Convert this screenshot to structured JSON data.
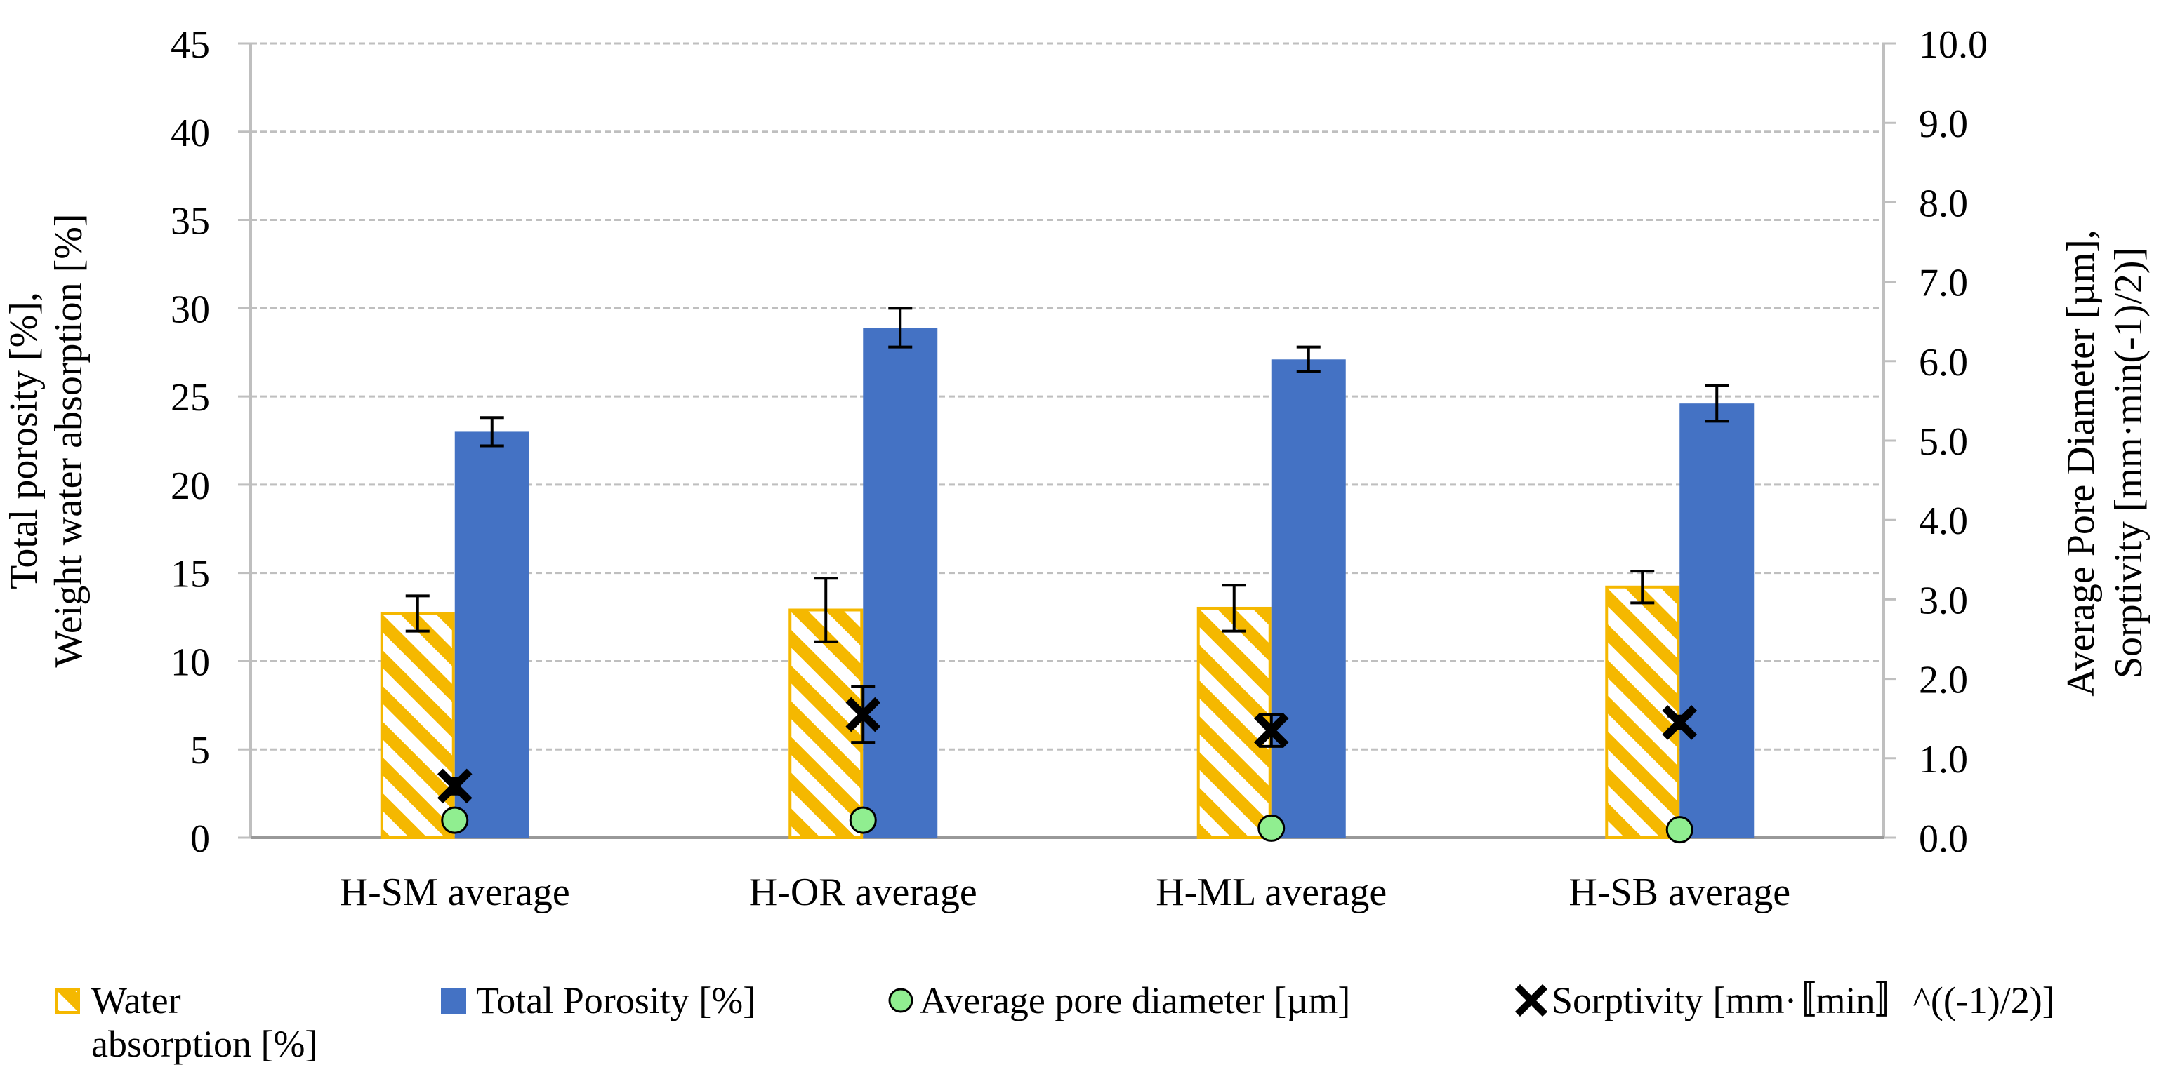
{
  "chart_data": {
    "type": "bar",
    "categories": [
      "H-SM average",
      "H-OR average",
      "H-ML average",
      "H-SB average"
    ],
    "left_axis": {
      "title_lines": [
        "Total porosity [%],",
        "Weight water absorption [%]"
      ],
      "range": [
        0,
        45
      ],
      "ticks": [
        0,
        5,
        10,
        15,
        20,
        25,
        30,
        35,
        40,
        45
      ],
      "tick_labels": [
        "0",
        "5",
        "10",
        "15",
        "20",
        "25",
        "30",
        "35",
        "40",
        "45"
      ]
    },
    "right_axis": {
      "title_lines": [
        "Average Pore Diameter [µm],",
        "Sorptivity [mm·min(-1)/2)]"
      ],
      "range": [
        0,
        10
      ],
      "ticks": [
        0,
        1,
        2,
        3,
        4,
        5,
        6,
        7,
        8,
        9,
        10
      ],
      "tick_labels": [
        "0.0",
        "1.0",
        "2.0",
        "3.0",
        "4.0",
        "5.0",
        "6.0",
        "7.0",
        "8.0",
        "9.0",
        "10.0"
      ]
    },
    "series": [
      {
        "name": "Water absorption [%]",
        "kind": "bar",
        "axis": "left",
        "pattern": "hatched",
        "color": "#F5B800",
        "values": [
          12.7,
          12.9,
          13.0,
          14.2
        ],
        "errors": [
          1.0,
          1.8,
          1.3,
          0.9
        ]
      },
      {
        "name": "Total Porosity [%]",
        "kind": "bar",
        "axis": "left",
        "color": "#4472C4",
        "values": [
          23.0,
          28.9,
          27.1,
          24.6
        ],
        "errors": [
          0.8,
          1.1,
          0.7,
          1.0
        ]
      },
      {
        "name": "Average pore diameter [µm]",
        "kind": "marker",
        "marker": "circle",
        "axis": "right",
        "color": "#90EE90",
        "values": [
          0.22,
          0.22,
          0.12,
          0.1
        ]
      },
      {
        "name": "Sorptivity [mm·〚min〛^((-1)/2)]",
        "kind": "marker",
        "marker": "x",
        "axis": "right",
        "color": "#000000",
        "values": [
          0.65,
          1.55,
          1.35,
          1.45
        ],
        "errors": [
          0.1,
          0.35,
          0.2,
          0.08
        ]
      }
    ],
    "grid": true,
    "legend_position": "bottom"
  },
  "legend": [
    {
      "id": "water",
      "lines": [
        "Water",
        "absorption [%]"
      ]
    },
    {
      "id": "porosity",
      "lines": [
        "Total Porosity [%]"
      ]
    },
    {
      "id": "pore",
      "lines": [
        "Average pore diameter [µm]"
      ]
    },
    {
      "id": "sorptivity",
      "lines": [
        "Sorptivity [mm·〚min〛^((-1)/2)]"
      ]
    }
  ]
}
